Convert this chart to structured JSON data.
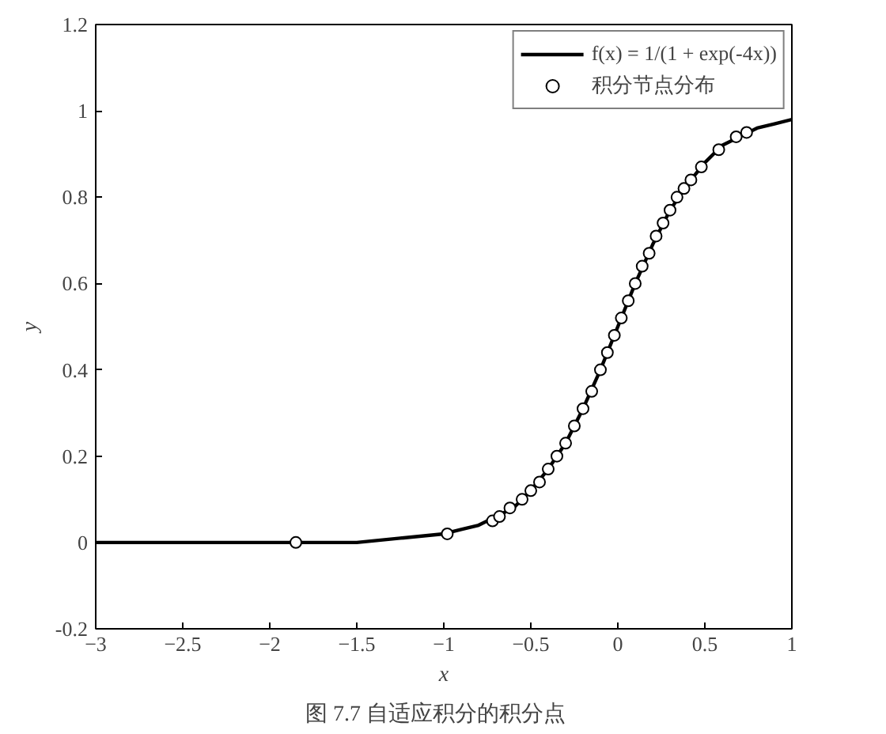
{
  "chart_data": {
    "type": "line",
    "xlabel": "x",
    "ylabel": "y",
    "annotations": [
      "图 7.7    自适应积分的积分点"
    ],
    "xlim": [
      -3,
      1
    ],
    "ylim": [
      -0.2,
      1.2
    ],
    "xticks": [
      -3,
      -2.5,
      -2,
      -1.5,
      -1,
      -0.5,
      0,
      0.5,
      1
    ],
    "yticks": [
      {
        "value": -0.2,
        "label": "-0.2"
      },
      0,
      0.2,
      0.4,
      0.6,
      0.8,
      1,
      1.2
    ],
    "grid": false,
    "legend": "top right",
    "series": [
      {
        "name": "f(x) = 1/(1 + exp(-4x))",
        "color": "#000000",
        "marker": "none",
        "line_style": "solid",
        "x": [
          -3,
          -2.5,
          -2,
          -1.5,
          -1.25,
          -1,
          -0.9,
          -0.8,
          -0.7,
          -0.6,
          -0.5,
          -0.4,
          -0.3,
          -0.2,
          -0.1,
          0,
          0.1,
          0.2,
          0.3,
          0.4,
          0.5,
          0.6,
          0.7,
          0.8,
          0.9,
          1
        ],
        "values": [
          0,
          0,
          0,
          0,
          0.01,
          0.02,
          0.03,
          0.04,
          0.06,
          0.08,
          0.12,
          0.17,
          0.23,
          0.31,
          0.4,
          0.5,
          0.6,
          0.69,
          0.77,
          0.83,
          0.88,
          0.92,
          0.94,
          0.96,
          0.97,
          0.98
        ]
      },
      {
        "name": "积分节点分布",
        "type": "scatter",
        "color": "#000000",
        "marker": "circle",
        "x": [
          -1.85,
          -0.98,
          -0.72,
          -0.68,
          -0.62,
          -0.55,
          -0.5,
          -0.45,
          -0.4,
          -0.35,
          -0.3,
          -0.25,
          -0.2,
          -0.15,
          -0.1,
          -0.06,
          -0.02,
          0.02,
          0.06,
          0.1,
          0.14,
          0.18,
          0.22,
          0.26,
          0.3,
          0.34,
          0.38,
          0.42,
          0.48,
          0.58,
          0.68,
          0.74
        ],
        "values": [
          0,
          0.02,
          0.05,
          0.06,
          0.08,
          0.1,
          0.12,
          0.14,
          0.17,
          0.2,
          0.23,
          0.27,
          0.31,
          0.35,
          0.4,
          0.44,
          0.48,
          0.52,
          0.56,
          0.6,
          0.64,
          0.67,
          0.71,
          0.74,
          0.77,
          0.8,
          0.82,
          0.84,
          0.87,
          0.91,
          0.94,
          0.95
        ]
      }
    ]
  }
}
